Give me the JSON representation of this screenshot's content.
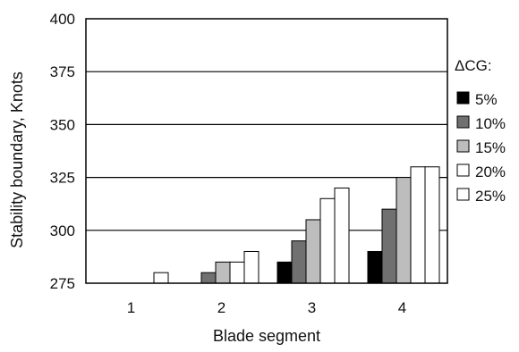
{
  "chart_data": {
    "type": "bar",
    "xlabel": "Blade segment",
    "ylabel": "Stability boundary, Knots",
    "ylim": [
      275,
      400
    ],
    "yticks": [
      275,
      300,
      325,
      350,
      375,
      400
    ],
    "categories": [
      "1",
      "2",
      "3",
      "4"
    ],
    "legend_title": "ΔCG:",
    "legend_position": "right",
    "grid": "horizontal",
    "series": [
      {
        "name": "5%",
        "color": "#000000",
        "values": [
          275,
          275,
          285,
          290
        ]
      },
      {
        "name": "10%",
        "color": "#707070",
        "values": [
          275,
          280,
          295,
          310
        ]
      },
      {
        "name": "15%",
        "color": "#bdbdbd",
        "values": [
          275,
          285,
          305,
          325
        ]
      },
      {
        "name": "20%",
        "color": "#ffffff",
        "values": [
          275,
          285,
          315,
          330
        ]
      },
      {
        "name": "25%",
        "color": "#ffffff",
        "values": [
          280,
          290,
          320,
          330
        ]
      }
    ]
  }
}
